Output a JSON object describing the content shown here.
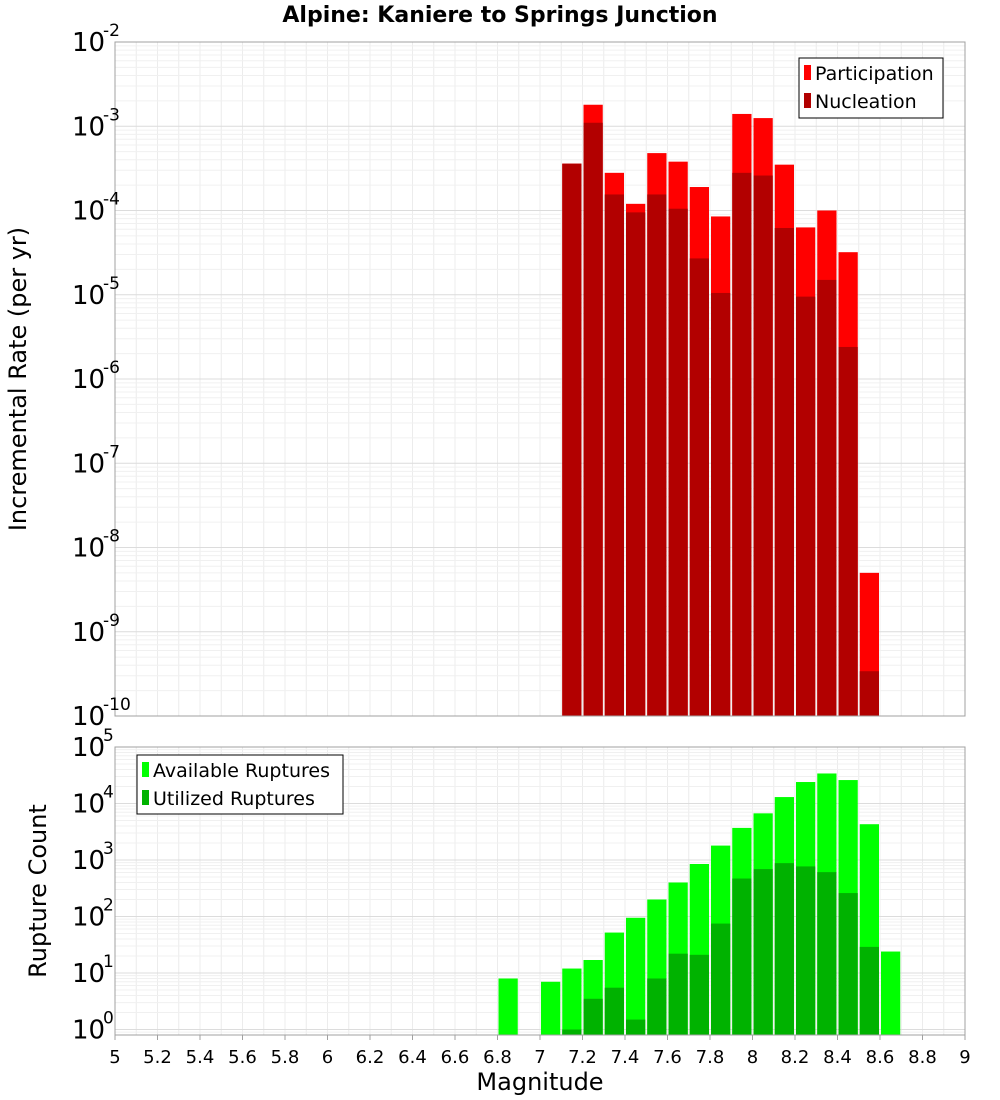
{
  "chart_data": [
    {
      "type": "bar",
      "title": "Alpine: Kaniere to Springs Junction",
      "xlabel": "",
      "ylabel": "Incremental Rate (per yr)",
      "yscale": "log",
      "xlim": [
        5,
        9
      ],
      "ylim": [
        1e-10,
        0.01
      ],
      "bin_width": 0.1,
      "grid": true,
      "legend_placement": "top-right",
      "x": [
        7.15,
        7.25,
        7.35,
        7.45,
        7.55,
        7.65,
        7.75,
        7.85,
        7.95,
        8.05,
        8.15,
        8.25,
        8.35,
        8.45,
        8.55
      ],
      "series": [
        {
          "name": "Participation",
          "color": "#ff0000",
          "values": [
            0.00036,
            0.0018,
            0.00028,
            0.00012,
            0.00048,
            0.00038,
            0.00019,
            8.5e-05,
            0.0014,
            0.00125,
            0.00035,
            6.3e-05,
            0.0001,
            3.2e-05,
            5e-09
          ]
        },
        {
          "name": "Nucleation",
          "color": "#b20000",
          "values": [
            0.00036,
            0.0011,
            0.000155,
            9.5e-05,
            0.000155,
            0.000105,
            2.7e-05,
            1.05e-05,
            0.00028,
            0.00026,
            6.2e-05,
            9.5e-06,
            1.5e-05,
            2.4e-06,
            3.4e-10
          ]
        }
      ]
    },
    {
      "type": "bar",
      "title": "",
      "xlabel": "Magnitude",
      "ylabel": "Rupture Count",
      "yscale": "log",
      "xlim": [
        5,
        9
      ],
      "ylim": [
        0.8,
        100000.0
      ],
      "bin_width": 0.1,
      "grid": true,
      "legend_placement": "top-left",
      "x_ticks": [
        "5",
        "5.2",
        "5.4",
        "5.6",
        "5.8",
        "6",
        "6.2",
        "6.4",
        "6.6",
        "6.8",
        "7",
        "7.2",
        "7.4",
        "7.6",
        "7.8",
        "8",
        "8.2",
        "8.4",
        "8.6",
        "8.8",
        "9"
      ],
      "x": [
        6.85,
        7.05,
        7.15,
        7.25,
        7.35,
        7.45,
        7.55,
        7.65,
        7.75,
        7.85,
        7.95,
        8.05,
        8.15,
        8.25,
        8.35,
        8.45,
        8.55,
        8.65
      ],
      "series": [
        {
          "name": "Available Ruptures",
          "color": "#00ff00",
          "values": [
            8,
            7,
            12,
            17,
            52,
            95,
            200,
            400,
            850,
            1800,
            3700,
            6700,
            13000,
            24000,
            34000,
            26000,
            4300,
            24
          ]
        },
        {
          "name": "Utilized Ruptures",
          "color": "#00b200",
          "values": [
            null,
            null,
            1,
            3.5,
            5.5,
            1.5,
            8,
            22,
            21,
            75,
            470,
            690,
            880,
            770,
            610,
            260,
            29,
            null
          ]
        }
      ]
    }
  ]
}
